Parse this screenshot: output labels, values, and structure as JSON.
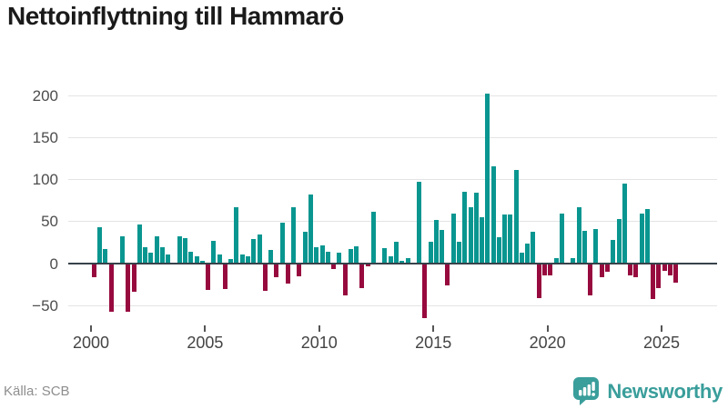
{
  "title": "Nettoinflyttning till Hammarö",
  "source": "Källa: SCB",
  "branding": {
    "name": "Newsworthy",
    "color": "#3a9e9b"
  },
  "chart_data": {
    "type": "bar",
    "title": "Nettoinflyttning till Hammarö",
    "frequency": "quarterly",
    "start_year": 2000,
    "start_quarter": 1,
    "values": [
      -16,
      43,
      17,
      -57,
      0,
      33,
      -57,
      -34,
      47,
      19,
      13,
      32,
      20,
      11,
      0,
      33,
      30,
      14,
      9,
      3,
      -31,
      27,
      11,
      -30,
      5,
      67,
      11,
      9,
      29,
      35,
      -32,
      16,
      -16,
      49,
      -24,
      67,
      -15,
      38,
      82,
      19,
      22,
      14,
      -7,
      13,
      -38,
      17,
      21,
      -29,
      -3,
      62,
      0,
      18,
      9,
      26,
      3,
      6,
      0,
      97,
      -65,
      26,
      52,
      40,
      -26,
      60,
      26,
      85,
      67,
      84,
      55,
      202,
      116,
      31,
      58,
      58,
      112,
      13,
      24,
      38,
      -41,
      -14,
      -14,
      6,
      59,
      0,
      6,
      67,
      39,
      -38,
      41,
      -16,
      -10,
      28,
      53,
      95,
      -14,
      -16,
      59,
      65,
      -42,
      -29,
      -9,
      -14,
      -23
    ],
    "series_name": "Nettoinflyttning",
    "xlabel": "",
    "ylabel": "",
    "xticks": [
      "2000",
      "2005",
      "2010",
      "2015",
      "2020",
      "2025"
    ],
    "yticks": [
      200,
      150,
      100,
      50,
      0,
      -50
    ],
    "ylim": [
      -75,
      215
    ],
    "grid": true,
    "legend": "none",
    "positive_color": "#0a9690",
    "negative_color": "#970a3e",
    "zero_line_color": "#37424a",
    "gridline_color": "#e4e4e4"
  }
}
